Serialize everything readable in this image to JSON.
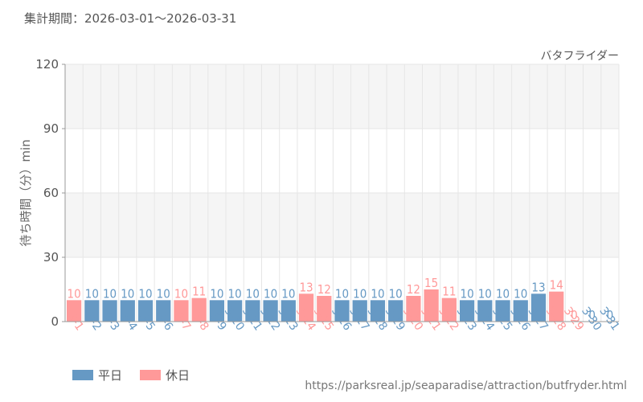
{
  "header": {
    "period": "集計期間：2026-03-01～2026-03-31"
  },
  "colors": {
    "weekday": "#6699c4",
    "holiday": "#ff9999",
    "grid": "#e6e6e6",
    "band": "#f5f5f5",
    "axis": "#999999"
  },
  "legend": {
    "weekday": "平日",
    "holiday": "休日"
  },
  "footer": {
    "url": "https://parksreal.jp/seaparadise/attraction/butfryder.html"
  },
  "chart_data": {
    "type": "bar",
    "title": "バタフライダー",
    "ylabel": "待ち時間（分）min",
    "ylim": [
      0,
      120
    ],
    "yticks": [
      0,
      30,
      60,
      90,
      120
    ],
    "grid": true,
    "legend_position": "bottom-left",
    "categories": [
      "3-1",
      "3-2",
      "3-3",
      "3-4",
      "3-5",
      "3-6",
      "3-7",
      "3-8",
      "3-9",
      "3-10",
      "3-11",
      "3-12",
      "3-13",
      "3-14",
      "3-15",
      "3-16",
      "3-17",
      "3-18",
      "3-19",
      "3-20",
      "3-21",
      "3-22",
      "3-23",
      "3-24",
      "3-25",
      "3-26",
      "3-27",
      "3-28",
      "3-29",
      "3-30",
      "3-31"
    ],
    "values": [
      10,
      10,
      10,
      10,
      10,
      10,
      10,
      11,
      10,
      10,
      10,
      10,
      10,
      13,
      12,
      10,
      10,
      10,
      10,
      12,
      15,
      11,
      10,
      10,
      10,
      10,
      13,
      14,
      0,
      0,
      0
    ],
    "day_type": [
      "holiday",
      "weekday",
      "weekday",
      "weekday",
      "weekday",
      "weekday",
      "holiday",
      "holiday",
      "weekday",
      "weekday",
      "weekday",
      "weekday",
      "weekday",
      "holiday",
      "holiday",
      "weekday",
      "weekday",
      "weekday",
      "weekday",
      "holiday",
      "holiday",
      "holiday",
      "weekday",
      "weekday",
      "weekday",
      "weekday",
      "weekday",
      "holiday",
      "holiday",
      "weekday",
      "weekday"
    ]
  }
}
